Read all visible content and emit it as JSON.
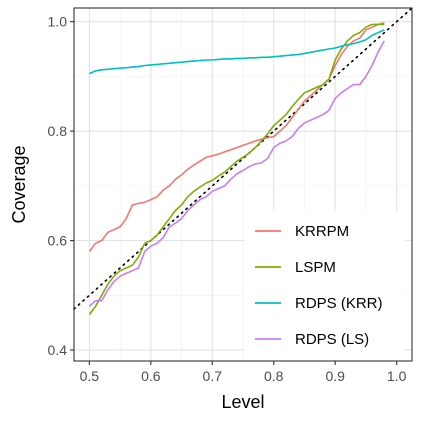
{
  "chart_data": {
    "type": "line",
    "title": "",
    "xlabel": "Level",
    "ylabel": "Coverage",
    "xlim": [
      0.475,
      1.025
    ],
    "ylim": [
      0.38,
      1.025
    ],
    "xticks": [
      0.5,
      0.6,
      0.7,
      0.8,
      0.9,
      1.0
    ],
    "xtick_labels": [
      "0.5",
      "0.6",
      "0.7",
      "0.8",
      "0.9",
      "1.0"
    ],
    "yticks": [
      0.4,
      0.6,
      0.8,
      1.0
    ],
    "ytick_labels": [
      "0.4",
      "0.6",
      "0.8",
      "1.0"
    ],
    "grid": true,
    "legend_position": "bottom-right",
    "reference_line": {
      "style": "dotted",
      "color": "#000000",
      "x": [
        0.475,
        1.025
      ],
      "y": [
        0.475,
        1.025
      ]
    },
    "series": [
      {
        "name": "KRRPM",
        "color": "#F8766D",
        "x": [
          0.5,
          0.51,
          0.52,
          0.53,
          0.54,
          0.55,
          0.56,
          0.57,
          0.58,
          0.59,
          0.6,
          0.61,
          0.62,
          0.63,
          0.64,
          0.65,
          0.66,
          0.67,
          0.68,
          0.69,
          0.7,
          0.71,
          0.72,
          0.73,
          0.74,
          0.75,
          0.76,
          0.77,
          0.78,
          0.79,
          0.8,
          0.81,
          0.82,
          0.83,
          0.84,
          0.85,
          0.86,
          0.87,
          0.88,
          0.89,
          0.9,
          0.91,
          0.92,
          0.93,
          0.94,
          0.95,
          0.96,
          0.97,
          0.98
        ],
        "y": [
          0.58,
          0.595,
          0.6,
          0.615,
          0.62,
          0.625,
          0.64,
          0.665,
          0.668,
          0.67,
          0.675,
          0.68,
          0.692,
          0.7,
          0.712,
          0.72,
          0.73,
          0.738,
          0.745,
          0.752,
          0.755,
          0.758,
          0.762,
          0.766,
          0.77,
          0.774,
          0.778,
          0.782,
          0.785,
          0.788,
          0.79,
          0.8,
          0.81,
          0.825,
          0.84,
          0.855,
          0.865,
          0.875,
          0.885,
          0.895,
          0.92,
          0.94,
          0.955,
          0.965,
          0.97,
          0.985,
          0.99,
          0.995,
          0.998
        ]
      },
      {
        "name": "LSPM",
        "color": "#7CAE00",
        "x": [
          0.5,
          0.51,
          0.52,
          0.53,
          0.54,
          0.55,
          0.56,
          0.57,
          0.58,
          0.59,
          0.6,
          0.61,
          0.62,
          0.63,
          0.64,
          0.65,
          0.66,
          0.67,
          0.68,
          0.69,
          0.7,
          0.71,
          0.72,
          0.73,
          0.74,
          0.75,
          0.76,
          0.77,
          0.78,
          0.79,
          0.8,
          0.81,
          0.82,
          0.83,
          0.84,
          0.85,
          0.86,
          0.87,
          0.88,
          0.89,
          0.9,
          0.91,
          0.92,
          0.93,
          0.94,
          0.95,
          0.96,
          0.97,
          0.98
        ],
        "y": [
          0.465,
          0.48,
          0.5,
          0.52,
          0.535,
          0.545,
          0.55,
          0.555,
          0.57,
          0.595,
          0.6,
          0.61,
          0.625,
          0.64,
          0.655,
          0.665,
          0.68,
          0.69,
          0.698,
          0.705,
          0.71,
          0.718,
          0.725,
          0.735,
          0.745,
          0.752,
          0.76,
          0.77,
          0.782,
          0.795,
          0.81,
          0.82,
          0.83,
          0.845,
          0.858,
          0.87,
          0.875,
          0.88,
          0.885,
          0.895,
          0.93,
          0.95,
          0.965,
          0.975,
          0.98,
          0.99,
          0.995,
          0.995,
          0.995
        ]
      },
      {
        "name": "RDPS (KRR)",
        "color": "#00BFC4",
        "x": [
          0.5,
          0.51,
          0.52,
          0.53,
          0.54,
          0.55,
          0.56,
          0.57,
          0.58,
          0.59,
          0.6,
          0.61,
          0.62,
          0.63,
          0.64,
          0.65,
          0.66,
          0.67,
          0.68,
          0.69,
          0.7,
          0.71,
          0.72,
          0.73,
          0.74,
          0.75,
          0.76,
          0.77,
          0.78,
          0.79,
          0.8,
          0.81,
          0.82,
          0.83,
          0.84,
          0.85,
          0.86,
          0.87,
          0.88,
          0.89,
          0.9,
          0.91,
          0.92,
          0.93,
          0.94,
          0.95,
          0.96,
          0.97,
          0.98
        ],
        "y": [
          0.905,
          0.91,
          0.912,
          0.913,
          0.914,
          0.915,
          0.916,
          0.917,
          0.918,
          0.92,
          0.921,
          0.922,
          0.923,
          0.924,
          0.925,
          0.926,
          0.927,
          0.928,
          0.929,
          0.93,
          0.93,
          0.931,
          0.932,
          0.932,
          0.933,
          0.933,
          0.934,
          0.934,
          0.935,
          0.935,
          0.936,
          0.937,
          0.938,
          0.939,
          0.94,
          0.942,
          0.944,
          0.946,
          0.948,
          0.95,
          0.952,
          0.955,
          0.958,
          0.96,
          0.963,
          0.967,
          0.975,
          0.98,
          0.985
        ]
      },
      {
        "name": "RDPS (LS)",
        "color": "#C77CFF",
        "x": [
          0.5,
          0.51,
          0.52,
          0.53,
          0.54,
          0.55,
          0.56,
          0.57,
          0.58,
          0.59,
          0.6,
          0.61,
          0.62,
          0.63,
          0.64,
          0.65,
          0.66,
          0.67,
          0.68,
          0.69,
          0.7,
          0.71,
          0.72,
          0.73,
          0.74,
          0.75,
          0.76,
          0.77,
          0.78,
          0.79,
          0.8,
          0.81,
          0.82,
          0.83,
          0.84,
          0.85,
          0.86,
          0.87,
          0.88,
          0.89,
          0.9,
          0.91,
          0.92,
          0.93,
          0.94,
          0.95,
          0.96,
          0.97,
          0.98
        ],
        "y": [
          0.48,
          0.49,
          0.49,
          0.51,
          0.525,
          0.535,
          0.54,
          0.545,
          0.55,
          0.58,
          0.59,
          0.595,
          0.605,
          0.625,
          0.632,
          0.64,
          0.655,
          0.665,
          0.675,
          0.68,
          0.69,
          0.695,
          0.7,
          0.712,
          0.722,
          0.728,
          0.735,
          0.74,
          0.742,
          0.75,
          0.77,
          0.778,
          0.782,
          0.79,
          0.805,
          0.815,
          0.82,
          0.825,
          0.83,
          0.838,
          0.86,
          0.87,
          0.878,
          0.885,
          0.885,
          0.9,
          0.92,
          0.945,
          0.965
        ]
      }
    ]
  }
}
